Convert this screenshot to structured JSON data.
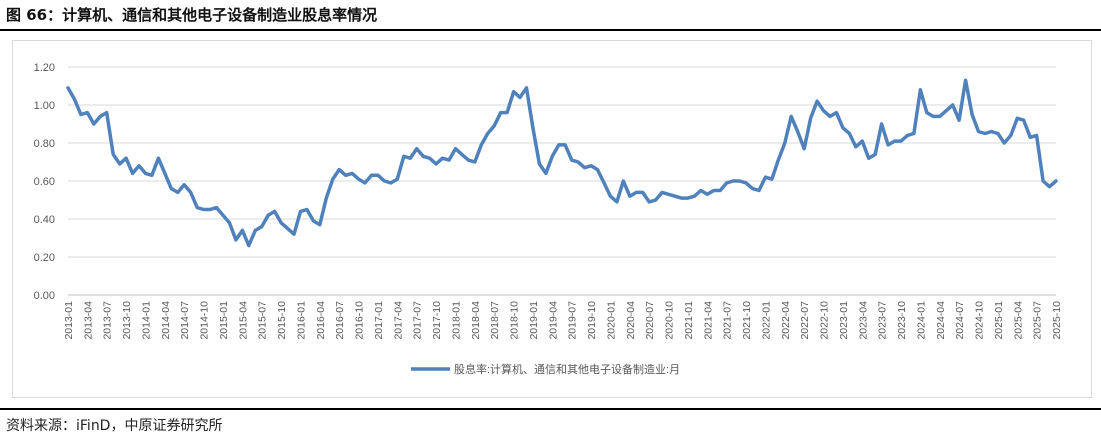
{
  "figure": {
    "title": "图 66：计算机、通信和其他电子设备制造业股息率情况",
    "source": "资料来源：iFinD，中原证券研究所"
  },
  "colors": {
    "series": "#4f81bd",
    "axis": "#bfbfbf",
    "grid": "#d9d9d9",
    "text": "#595959"
  },
  "chart_data": {
    "type": "line",
    "title": "",
    "xlabel": "",
    "ylabel": "",
    "ylim": [
      0,
      1.2
    ],
    "yticks": [
      "0.00",
      "0.20",
      "0.40",
      "0.60",
      "0.80",
      "1.00",
      "1.20"
    ],
    "grid": true,
    "legend_position": "bottom",
    "x_tick_labels": [
      "2013-01",
      "2013-04",
      "2013-07",
      "2013-10",
      "2014-01",
      "2014-04",
      "2014-07",
      "2014-10",
      "2015-01",
      "2015-04",
      "2015-07",
      "2015-10",
      "2016-01",
      "2016-04",
      "2016-07",
      "2016-10",
      "2017-01",
      "2017-04",
      "2017-07",
      "2017-10",
      "2018-01",
      "2018-04",
      "2018-07",
      "2018-10",
      "2019-01",
      "2019-04",
      "2019-07",
      "2019-10",
      "2020-01",
      "2020-04",
      "2020-07",
      "2020-10",
      "2021-01",
      "2021-04",
      "2021-07",
      "2021-10",
      "2022-01",
      "2022-04",
      "2022-07",
      "2022-10",
      "2023-01",
      "2023-04",
      "2023-07",
      "2023-10",
      "2024-01",
      "2024-04",
      "2024-07",
      "2024-10",
      "2025-01",
      "2025-04",
      "2025-07",
      "2025-10"
    ],
    "x_start": "2013-01",
    "series": [
      {
        "name": "股息率:计算机、通信和其他电子设备制造业:月",
        "values": [
          1.09,
          1.03,
          0.95,
          0.96,
          0.9,
          0.94,
          0.96,
          0.74,
          0.69,
          0.72,
          0.64,
          0.68,
          0.64,
          0.63,
          0.72,
          0.64,
          0.56,
          0.54,
          0.58,
          0.54,
          0.46,
          0.45,
          0.45,
          0.46,
          0.42,
          0.38,
          0.29,
          0.34,
          0.26,
          0.34,
          0.36,
          0.42,
          0.44,
          0.38,
          0.35,
          0.32,
          0.44,
          0.45,
          0.39,
          0.37,
          0.51,
          0.61,
          0.66,
          0.63,
          0.64,
          0.61,
          0.59,
          0.63,
          0.63,
          0.6,
          0.59,
          0.61,
          0.73,
          0.72,
          0.77,
          0.73,
          0.72,
          0.69,
          0.72,
          0.71,
          0.77,
          0.74,
          0.71,
          0.7,
          0.79,
          0.85,
          0.89,
          0.96,
          0.96,
          1.07,
          1.04,
          1.09,
          0.88,
          0.69,
          0.64,
          0.73,
          0.79,
          0.79,
          0.71,
          0.7,
          0.67,
          0.68,
          0.66,
          0.59,
          0.52,
          0.49,
          0.6,
          0.52,
          0.54,
          0.54,
          0.49,
          0.5,
          0.54,
          0.53,
          0.52,
          0.51,
          0.51,
          0.52,
          0.55,
          0.53,
          0.55,
          0.55,
          0.59,
          0.6,
          0.6,
          0.59,
          0.56,
          0.55,
          0.62,
          0.61,
          0.71,
          0.8,
          0.94,
          0.86,
          0.77,
          0.93,
          1.02,
          0.97,
          0.94,
          0.96,
          0.88,
          0.85,
          0.78,
          0.81,
          0.72,
          0.74,
          0.9,
          0.79,
          0.81,
          0.81,
          0.84,
          0.85,
          1.08,
          0.96,
          0.94,
          0.94,
          0.97,
          1.0,
          0.92,
          1.13,
          0.95,
          0.86,
          0.85,
          0.86,
          0.85,
          0.8,
          0.84,
          0.93,
          0.92,
          0.83,
          0.84,
          0.6,
          0.57,
          0.6
        ]
      }
    ]
  }
}
